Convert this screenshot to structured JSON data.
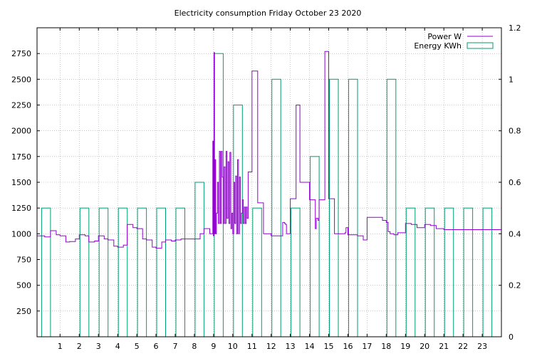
{
  "chart_data": {
    "type": "line",
    "title": "Electricity consumption Friday October 23 2020",
    "xlabel": "",
    "ylabel": "",
    "y2label": "",
    "xlim": [
      -0.2,
      24.0
    ],
    "ylim": [
      0,
      3000
    ],
    "y2lim": [
      0,
      1.2
    ],
    "x_ticks": [
      1,
      2,
      3,
      4,
      5,
      6,
      7,
      8,
      9,
      10,
      11,
      12,
      13,
      14,
      15,
      16,
      17,
      18,
      19,
      20,
      21,
      22,
      23
    ],
    "y_ticks": [
      250,
      500,
      750,
      1000,
      1250,
      1500,
      1750,
      2000,
      2250,
      2500,
      2750
    ],
    "y2_ticks": [
      0,
      0.2,
      0.4,
      0.6,
      0.8,
      1,
      1.2
    ],
    "grid": true,
    "legend_position": "top-right",
    "colors": {
      "power": "#9400d3",
      "energy": "#009e73",
      "grid": "#a0a0a0",
      "axis": "#000000"
    },
    "series": [
      {
        "name": "Power W",
        "type": "step-line",
        "axis": "y",
        "x": [
          -0.2,
          0.0,
          0.2,
          0.5,
          0.8,
          1.0,
          1.3,
          1.5,
          1.8,
          2.0,
          2.3,
          2.5,
          2.8,
          3.0,
          3.3,
          3.5,
          3.8,
          4.0,
          4.3,
          4.5,
          4.8,
          5.0,
          5.3,
          5.5,
          5.8,
          6.0,
          6.3,
          6.5,
          6.8,
          7.0,
          7.3,
          7.5,
          7.8,
          8.0,
          8.3,
          8.5,
          8.8,
          8.93,
          8.96,
          8.99,
          9.02,
          9.05,
          9.08,
          9.11,
          9.15,
          9.2,
          9.25,
          9.3,
          9.35,
          9.4,
          9.45,
          9.5,
          9.55,
          9.6,
          9.65,
          9.7,
          9.75,
          9.8,
          9.85,
          9.9,
          9.95,
          10.0,
          10.05,
          10.1,
          10.15,
          10.2,
          10.25,
          10.3,
          10.35,
          10.4,
          10.45,
          10.5,
          10.55,
          10.6,
          10.65,
          10.7,
          10.75,
          10.8,
          11.0,
          11.3,
          11.6,
          12.0,
          12.3,
          12.6,
          12.7,
          12.75,
          12.8,
          13.0,
          13.3,
          13.5,
          14.0,
          14.2,
          14.3,
          14.35,
          14.4,
          14.45,
          14.5,
          14.8,
          15.0,
          15.3,
          15.6,
          15.85,
          15.9,
          15.95,
          16.0,
          16.5,
          16.8,
          17.0,
          17.5,
          17.8,
          18.0,
          18.1,
          18.2,
          18.4,
          18.6,
          19.0,
          19.3,
          19.6,
          20.0,
          20.3,
          20.6,
          21.0,
          21.3,
          21.6,
          22.0,
          22.3,
          22.6,
          23.0,
          23.3,
          23.6
        ],
        "values": [
          980,
          980,
          970,
          1030,
          990,
          980,
          920,
          925,
          950,
          990,
          980,
          920,
          930,
          980,
          950,
          940,
          880,
          870,
          890,
          1090,
          1060,
          1050,
          950,
          940,
          870,
          860,
          920,
          940,
          930,
          940,
          950,
          950,
          950,
          950,
          1000,
          1050,
          1000,
          1000,
          1900,
          980,
          2760,
          1000,
          1720,
          1000,
          1200,
          1500,
          1100,
          1800,
          1100,
          1800,
          1550,
          1100,
          1650,
          1100,
          1800,
          1150,
          1700,
          1100,
          1790,
          1050,
          1200,
          1000,
          1500,
          1100,
          1560,
          1000,
          1720,
          1000,
          1550,
          1100,
          1200,
          1330,
          1100,
          1260,
          1100,
          1260,
          1150,
          1600,
          2580,
          1300,
          1000,
          980,
          980,
          1110,
          1100,
          1090,
          1000,
          1340,
          2250,
          1500,
          1330,
          1330,
          1050,
          1150,
          1150,
          1130,
          1330,
          2770,
          1340,
          1000,
          1000,
          1010,
          1060,
          1060,
          990,
          980,
          940,
          1160,
          1160,
          1130,
          1110,
          1020,
          1000,
          990,
          1010,
          1100,
          1090,
          1060,
          1090,
          1080,
          1050,
          1040,
          1040,
          1040,
          1040,
          1040,
          1040,
          1040,
          1040,
          1040
        ]
      },
      {
        "name": "Energy KWh",
        "type": "step-bar",
        "axis": "y2",
        "x": [
          0,
          1,
          2,
          3,
          4,
          5,
          6,
          7,
          8,
          9,
          10,
          11,
          12,
          13,
          14,
          15,
          16,
          17,
          18,
          19,
          20,
          21,
          22,
          23
        ],
        "values": [
          0.5,
          0,
          0.5,
          0.5,
          0.5,
          0.5,
          0.5,
          0.5,
          0.6,
          1.1,
          0.9,
          0.5,
          1.0,
          0.5,
          0.7,
          1.0,
          1.0,
          0,
          1.0,
          0.5,
          0.5,
          0.5,
          0.5,
          0.5
        ]
      }
    ]
  }
}
